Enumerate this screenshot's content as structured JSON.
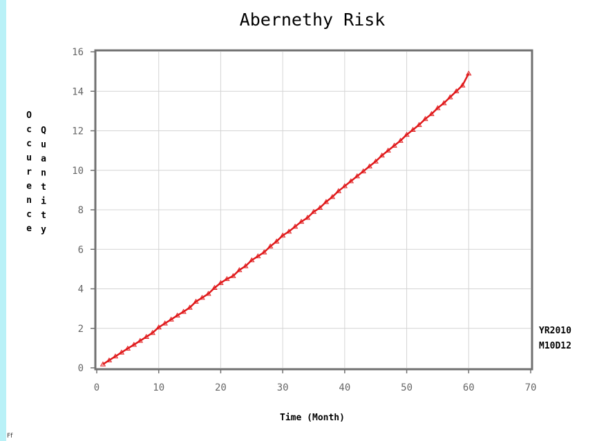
{
  "corner_mark": "Ff",
  "chart_data": {
    "type": "line",
    "title": "Abernethy Risk",
    "xlabel": "Time (Month)",
    "ylabel_lines": [
      "Occurence",
      "Quantity"
    ],
    "annotation": [
      "YR2010",
      "M10D12"
    ],
    "xlim": [
      0,
      70
    ],
    "ylim": [
      0,
      16
    ],
    "x_ticks": [
      0,
      10,
      20,
      30,
      40,
      50,
      60,
      70
    ],
    "y_ticks": [
      0,
      2,
      4,
      6,
      8,
      10,
      12,
      14,
      16
    ],
    "grid": true,
    "line_color": "#e0191b",
    "frame_color": "#707070",
    "grid_color": "#d4d4d4",
    "series": [
      {
        "x": [
          1,
          2,
          3,
          4,
          5,
          6,
          7,
          8,
          9,
          10,
          11,
          12,
          13,
          14,
          15,
          16,
          17,
          18,
          19,
          20,
          21,
          22,
          23,
          24,
          25,
          26,
          27,
          28,
          29,
          30,
          31,
          32,
          33,
          34,
          35,
          36,
          37,
          38,
          39,
          40,
          41,
          42,
          43,
          44,
          45,
          46,
          47,
          48,
          49,
          50,
          51,
          52,
          53,
          54,
          55,
          56,
          57,
          58,
          59,
          60
        ],
        "y": [
          0.18,
          0.38,
          0.58,
          0.78,
          0.98,
          1.17,
          1.37,
          1.57,
          1.77,
          2.05,
          2.25,
          2.45,
          2.65,
          2.84,
          3.05,
          3.35,
          3.55,
          3.75,
          4.05,
          4.3,
          4.5,
          4.65,
          4.95,
          5.15,
          5.45,
          5.65,
          5.85,
          6.15,
          6.4,
          6.7,
          6.9,
          7.15,
          7.4,
          7.6,
          7.9,
          8.1,
          8.4,
          8.65,
          8.95,
          9.2,
          9.45,
          9.7,
          9.95,
          10.2,
          10.45,
          10.75,
          11.0,
          11.25,
          11.5,
          11.8,
          12.05,
          12.3,
          12.6,
          12.85,
          13.15,
          13.4,
          13.7,
          14.0,
          14.3,
          14.9
        ]
      }
    ]
  }
}
